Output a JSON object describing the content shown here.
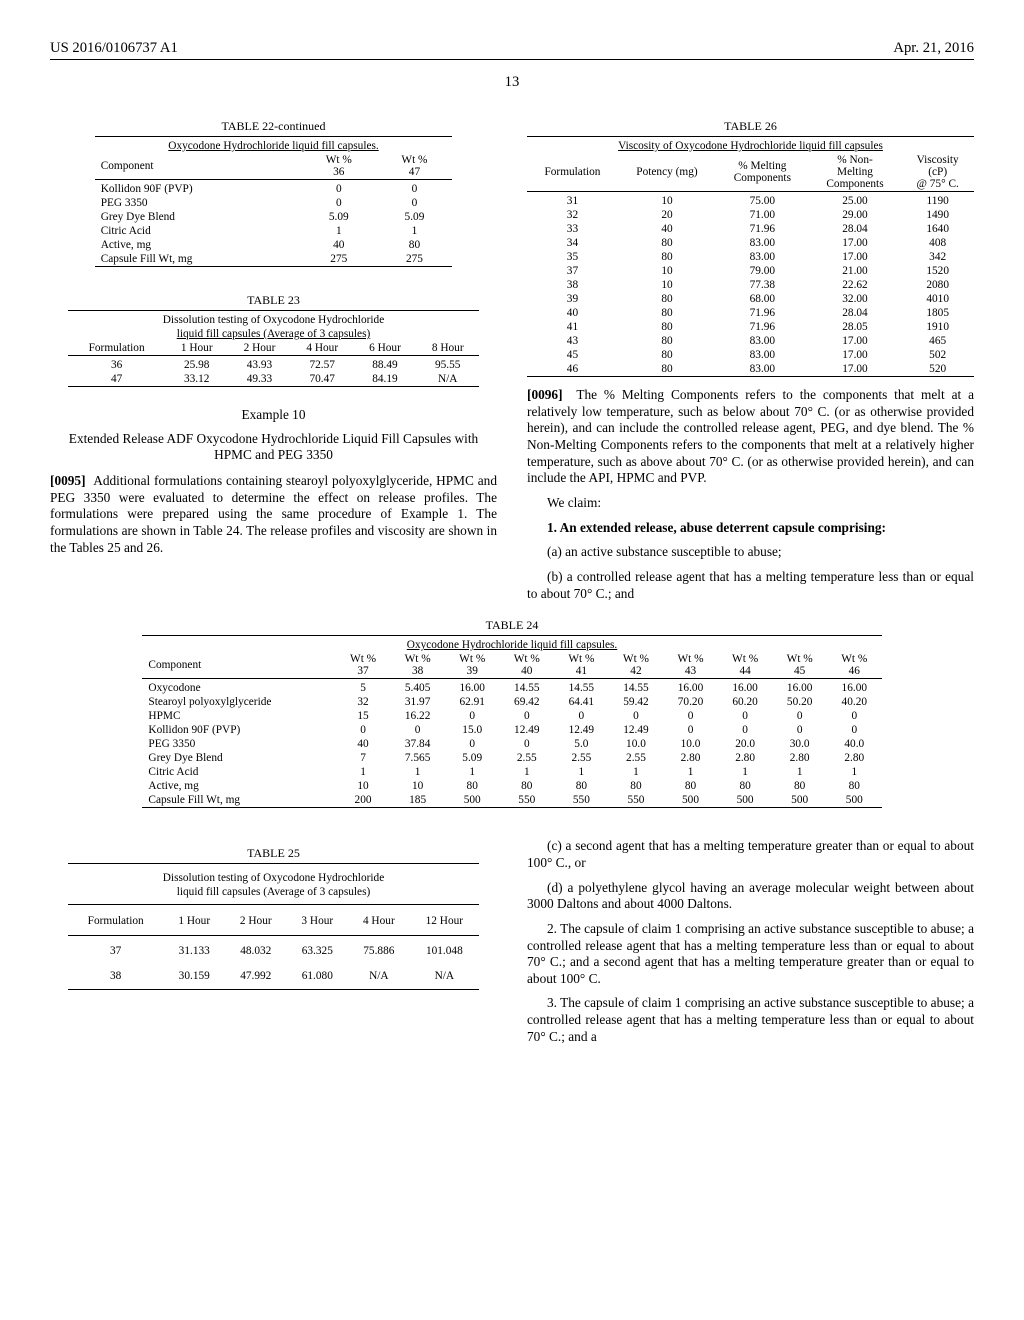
{
  "header": {
    "left": "US 2016/0106737 A1",
    "right": "Apr. 21, 2016"
  },
  "page": "13",
  "table22": {
    "caption": "TABLE 22-continued",
    "subcaption": "Oxycodone Hydrochloride liquid fill capsules.",
    "col_labels": [
      "Component",
      "Wt % 36",
      "Wt % 47"
    ],
    "rows": [
      [
        "Kollidon 90F (PVP)",
        "0",
        "0"
      ],
      [
        "PEG 3350",
        "0",
        "0"
      ],
      [
        "Grey Dye Blend",
        "5.09",
        "5.09"
      ],
      [
        "Citric Acid",
        "1",
        "1"
      ],
      [
        "Active, mg",
        "40",
        "80"
      ],
      [
        "Capsule Fill Wt, mg",
        "275",
        "275"
      ]
    ]
  },
  "table23": {
    "caption": "TABLE 23",
    "sub1": "Dissolution testing of Oxycodone Hydrochloride",
    "sub2": "liquid fill capsules (Average of 3 capsules)",
    "col_labels": [
      "Formulation",
      "1 Hour",
      "2 Hour",
      "4 Hour",
      "6 Hour",
      "8 Hour"
    ],
    "rows": [
      [
        "36",
        "25.98",
        "43.93",
        "72.57",
        "88.49",
        "95.55"
      ],
      [
        "47",
        "33.12",
        "49.33",
        "70.47",
        "84.19",
        "N/A"
      ]
    ]
  },
  "example10": {
    "title": "Example 10",
    "subtitle": "Extended Release ADF Oxycodone Hydrochloride Liquid Fill Capsules with HPMC and PEG 3350"
  },
  "para0095": {
    "num": "[0095]",
    "text": "Additional formulations containing stearoyl polyoxylglyceride, HPMC and PEG 3350 were evaluated to determine the effect on release profiles. The formulations were prepared using the same procedure of Example 1. The formulations are shown in Table 24. The release profiles and viscosity are shown in the Tables 25 and 26."
  },
  "table26": {
    "caption": "TABLE 26",
    "subcaption": "Viscosity of Oxycodone Hydrochloride liquid fill capsules",
    "col_labels": [
      "Formulation",
      "Potency (mg)",
      "% Melting Components",
      "% Non-Melting Components",
      "Viscosity (cP) @ 75° C."
    ],
    "rows": [
      [
        "31",
        "10",
        "75.00",
        "25.00",
        "1190"
      ],
      [
        "32",
        "20",
        "71.00",
        "29.00",
        "1490"
      ],
      [
        "33",
        "40",
        "71.96",
        "28.04",
        "1640"
      ],
      [
        "34",
        "80",
        "83.00",
        "17.00",
        "408"
      ],
      [
        "35",
        "80",
        "83.00",
        "17.00",
        "342"
      ],
      [
        "37",
        "10",
        "79.00",
        "21.00",
        "1520"
      ],
      [
        "38",
        "10",
        "77.38",
        "22.62",
        "2080"
      ],
      [
        "39",
        "80",
        "68.00",
        "32.00",
        "4010"
      ],
      [
        "40",
        "80",
        "71.96",
        "28.04",
        "1805"
      ],
      [
        "41",
        "80",
        "71.96",
        "28.05",
        "1910"
      ],
      [
        "43",
        "80",
        "83.00",
        "17.00",
        "465"
      ],
      [
        "45",
        "80",
        "83.00",
        "17.00",
        "502"
      ],
      [
        "46",
        "80",
        "83.00",
        "17.00",
        "520"
      ]
    ]
  },
  "para0096": {
    "num": "[0096]",
    "text": "The % Melting Components refers to the components that melt at a relatively low temperature, such as below about 70° C. (or as otherwise provided herein), and can include the controlled release agent, PEG, and dye blend. The % Non-Melting Components refers to the components that melt at a relatively higher temperature, such as above about 70° C. (or as otherwise provided herein), and can include the API, HPMC and PVP."
  },
  "claims": {
    "intro": "We claim:",
    "c1": "1. An extended release, abuse deterrent capsule comprising:",
    "c1a": "(a) an active substance susceptible to abuse;",
    "c1b": "(b) a controlled release agent that has a melting temperature less than or equal to about 70° C.; and",
    "c1c": "(c) a second agent that has a melting temperature greater than or equal to about 100° C., or",
    "c1d": "(d) a polyethylene glycol having an average molecular weight between about 3000 Daltons and about 4000 Daltons.",
    "c2": "2. The capsule of claim 1 comprising an active substance susceptible to abuse; a controlled release agent that has a melting temperature less than or equal to about 70° C.; and a second agent that has a melting temperature greater than or equal to about 100° C.",
    "c3": "3. The capsule of claim 1 comprising an active substance susceptible to abuse; a controlled release agent that has a melting temperature less than or equal to about 70° C.; and a"
  },
  "table24": {
    "caption": "TABLE 24",
    "subcaption": "Oxycodone Hydrochloride liquid fill capsules.",
    "top_labels": [
      "Component",
      "Wt % 37",
      "Wt % 38",
      "Wt % 39",
      "Wt % 40",
      "Wt % 41",
      "Wt % 42",
      "Wt % 43",
      "Wt % 44",
      "Wt % 45",
      "Wt % 46"
    ],
    "rows": [
      [
        "Oxycodone",
        "5",
        "5.405",
        "16.00",
        "14.55",
        "14.55",
        "14.55",
        "16.00",
        "16.00",
        "16.00",
        "16.00"
      ],
      [
        "Stearoyl polyoxylglyceride",
        "32",
        "31.97",
        "62.91",
        "69.42",
        "64.41",
        "59.42",
        "70.20",
        "60.20",
        "50.20",
        "40.20"
      ],
      [
        "HPMC",
        "15",
        "16.22",
        "0",
        "0",
        "0",
        "0",
        "0",
        "0",
        "0",
        "0"
      ],
      [
        "Kollidon 90F (PVP)",
        "0",
        "0",
        "15.0",
        "12.49",
        "12.49",
        "12.49",
        "0",
        "0",
        "0",
        "0"
      ],
      [
        "PEG 3350",
        "40",
        "37.84",
        "0",
        "0",
        "5.0",
        "10.0",
        "10.0",
        "20.0",
        "30.0",
        "40.0"
      ],
      [
        "Grey Dye Blend",
        "7",
        "7.565",
        "5.09",
        "2.55",
        "2.55",
        "2.55",
        "2.80",
        "2.80",
        "2.80",
        "2.80"
      ],
      [
        "Citric Acid",
        "1",
        "1",
        "1",
        "1",
        "1",
        "1",
        "1",
        "1",
        "1",
        "1"
      ],
      [
        "Active, mg",
        "10",
        "10",
        "80",
        "80",
        "80",
        "80",
        "80",
        "80",
        "80",
        "80"
      ],
      [
        "Capsule Fill Wt, mg",
        "200",
        "185",
        "500",
        "550",
        "550",
        "550",
        "500",
        "500",
        "500",
        "500"
      ]
    ]
  },
  "table25": {
    "caption": "TABLE 25",
    "sub1": "Dissolution testing of Oxycodone Hydrochloride",
    "sub2": "liquid fill capsules (Average of 3 capsules)",
    "col_labels": [
      "Formulation",
      "1 Hour",
      "2 Hour",
      "3 Hour",
      "4 Hour",
      "12 Hour"
    ],
    "rows": [
      [
        "37",
        "31.133",
        "48.032",
        "63.325",
        "75.886",
        "101.048"
      ],
      [
        "38",
        "30.159",
        "47.992",
        "61.080",
        "N/A",
        "N/A"
      ]
    ]
  }
}
